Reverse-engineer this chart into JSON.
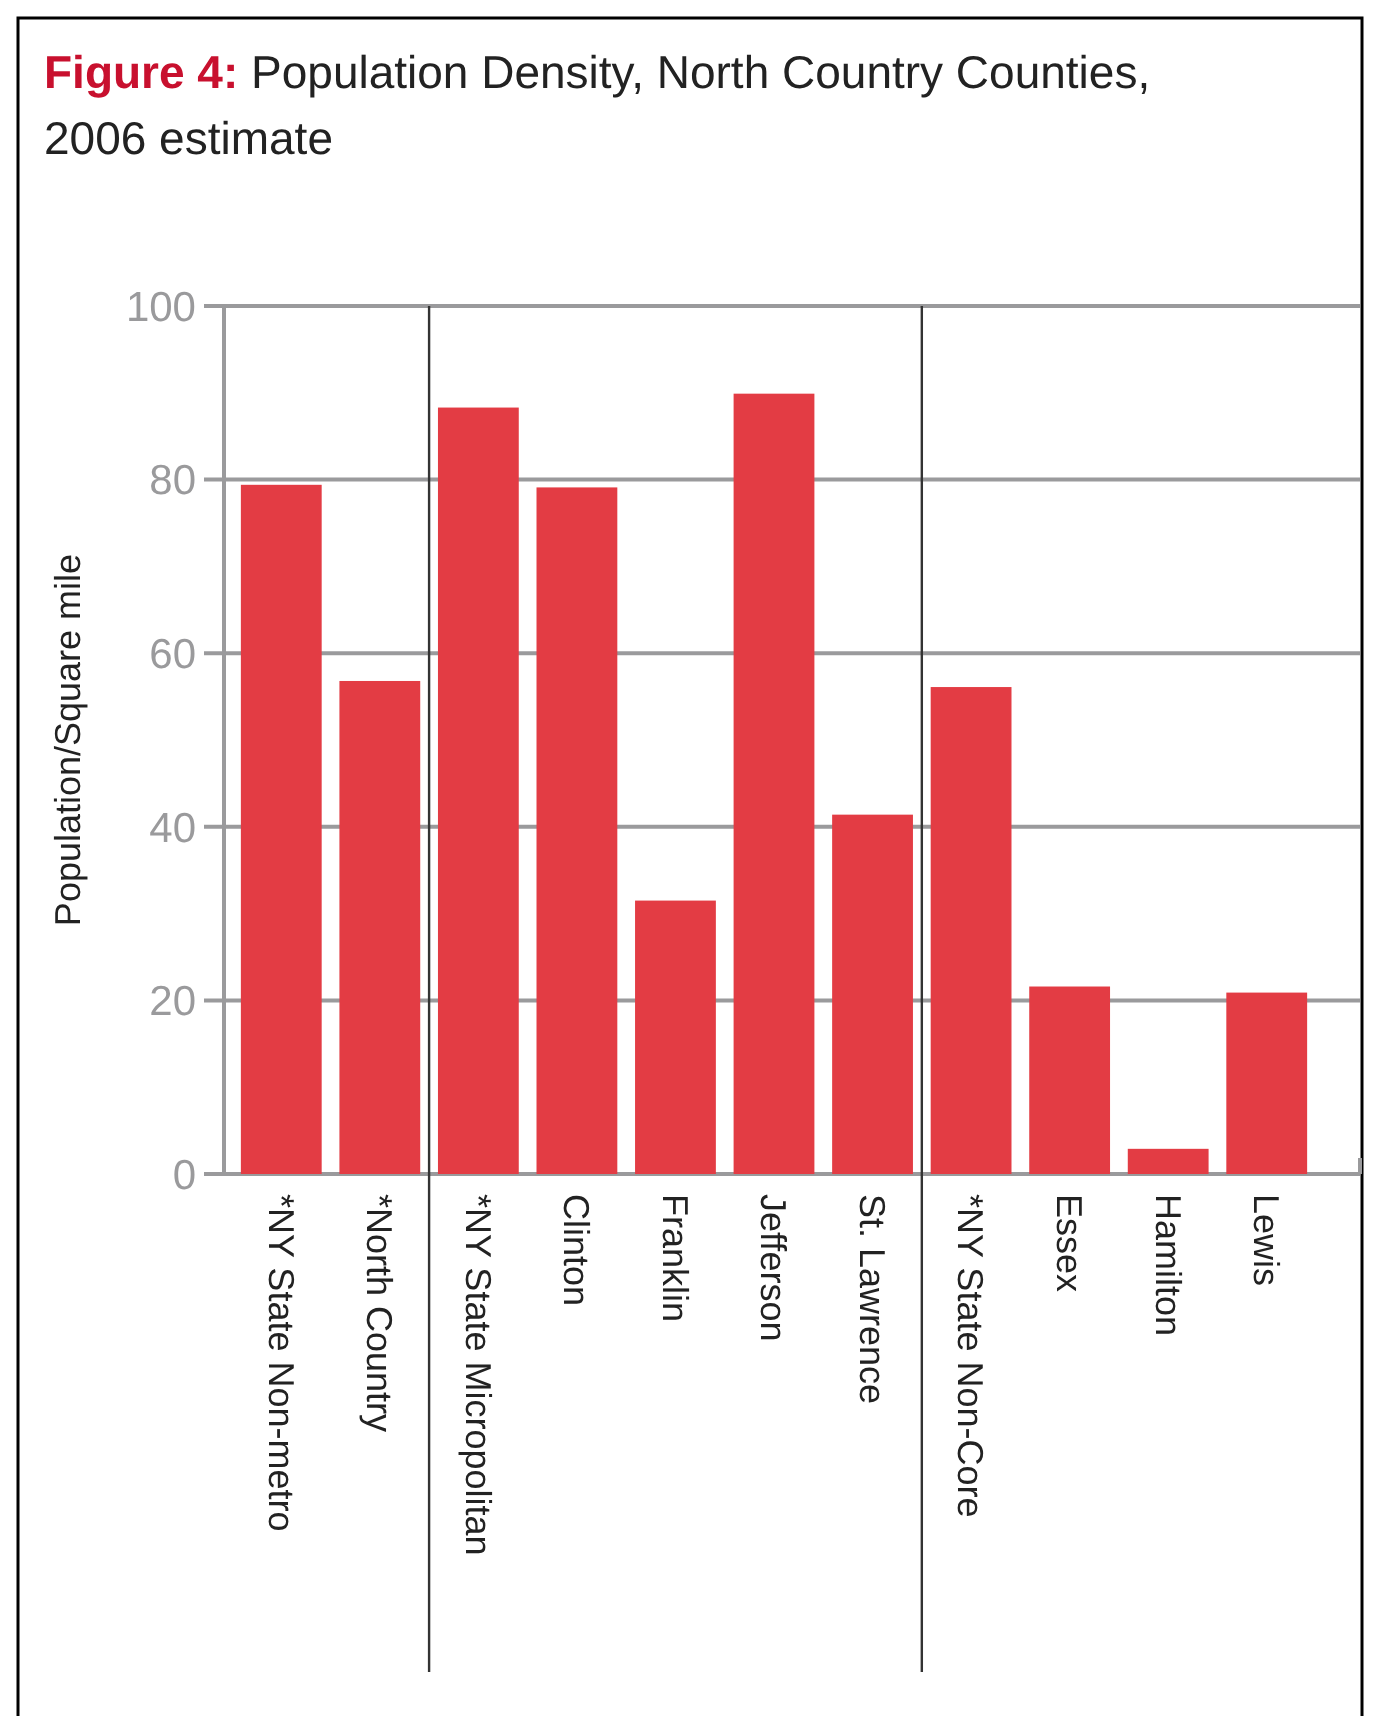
{
  "chart_data": {
    "type": "bar",
    "title": "Figure 4: Population Density, North Country Counties, 2006 estimate",
    "ylabel": "Population/Square mile",
    "categories": [
      "*NY State Non-metro",
      "*North Country",
      "*NY State Micropolitan",
      "Clinton",
      "Franklin",
      "Jefferson",
      "St. Lawrence",
      "*NY State Non-Core",
      "Essex",
      "Hamilton",
      "Lewis"
    ],
    "values": [
      79.4,
      56.8,
      88.3,
      79.1,
      31.5,
      89.9,
      41.4,
      56.1,
      21.6,
      2.9,
      20.9
    ],
    "color": "#e33c44",
    "ylim": [
      0,
      100
    ],
    "yticks": [
      0,
      20,
      40,
      60,
      80,
      100
    ],
    "grid": "y"
  }
}
